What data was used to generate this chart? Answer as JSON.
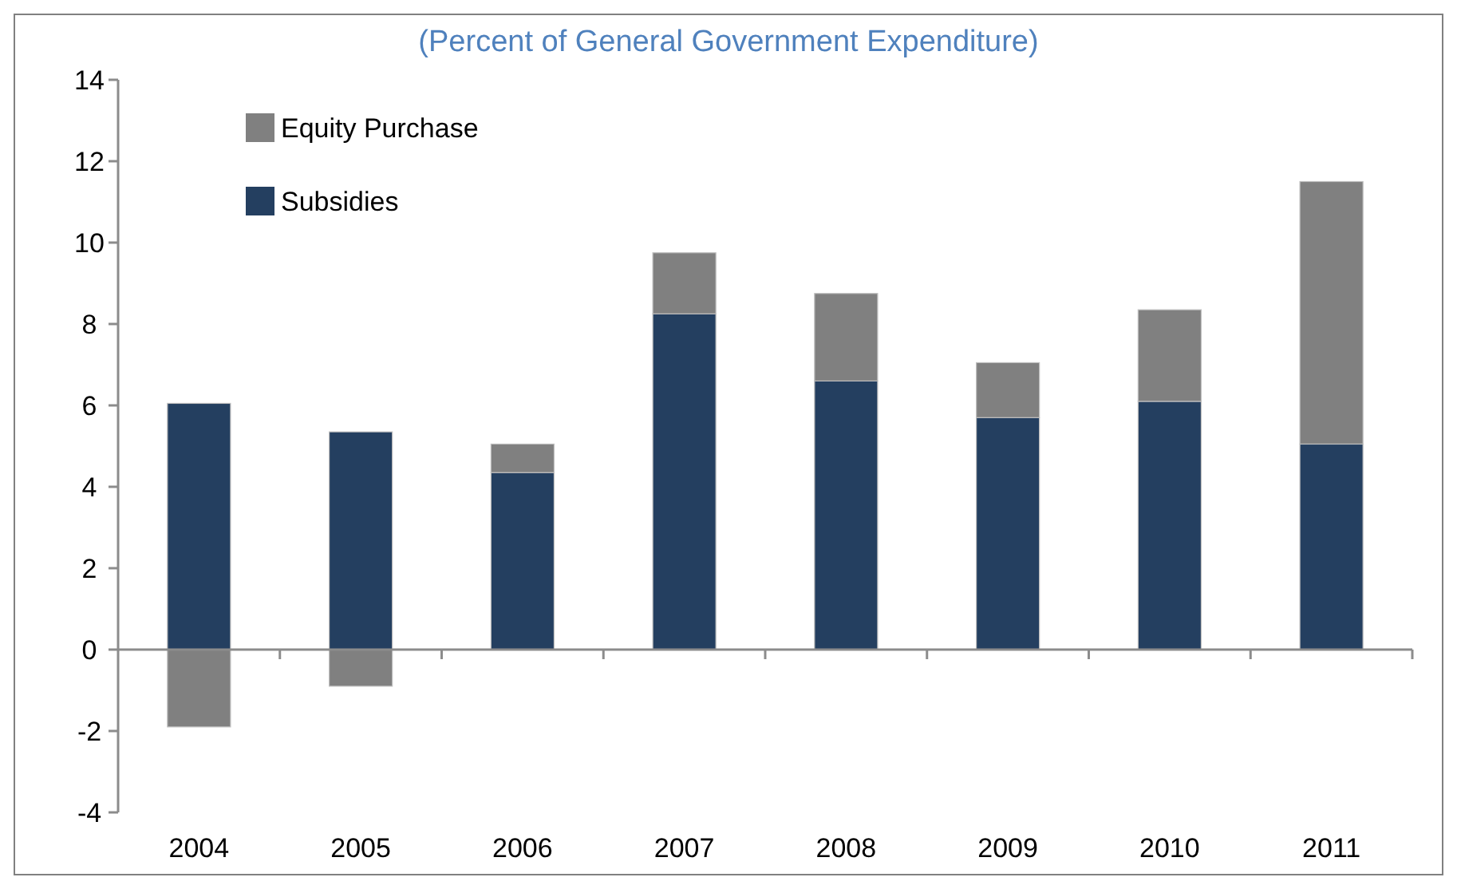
{
  "chart_data": {
    "type": "bar",
    "subtitle": "(Percent of General Government Expenditure)",
    "stacked": true,
    "categories": [
      "2004",
      "2005",
      "2006",
      "2007",
      "2008",
      "2009",
      "2010",
      "2011"
    ],
    "series": [
      {
        "name": "Subsidies",
        "color": "#243f60",
        "values": [
          6.05,
          5.35,
          4.35,
          8.25,
          6.6,
          5.7,
          6.1,
          5.05
        ]
      },
      {
        "name": "Equity Purchase",
        "color": "#808080",
        "values": [
          -1.9,
          -0.9,
          0.7,
          1.5,
          2.15,
          1.35,
          2.25,
          6.45
        ]
      }
    ],
    "ylim": [
      -4,
      14
    ],
    "yticks": [
      -4,
      -2,
      0,
      2,
      4,
      6,
      8,
      10,
      12,
      14
    ],
    "legend": "top left"
  }
}
